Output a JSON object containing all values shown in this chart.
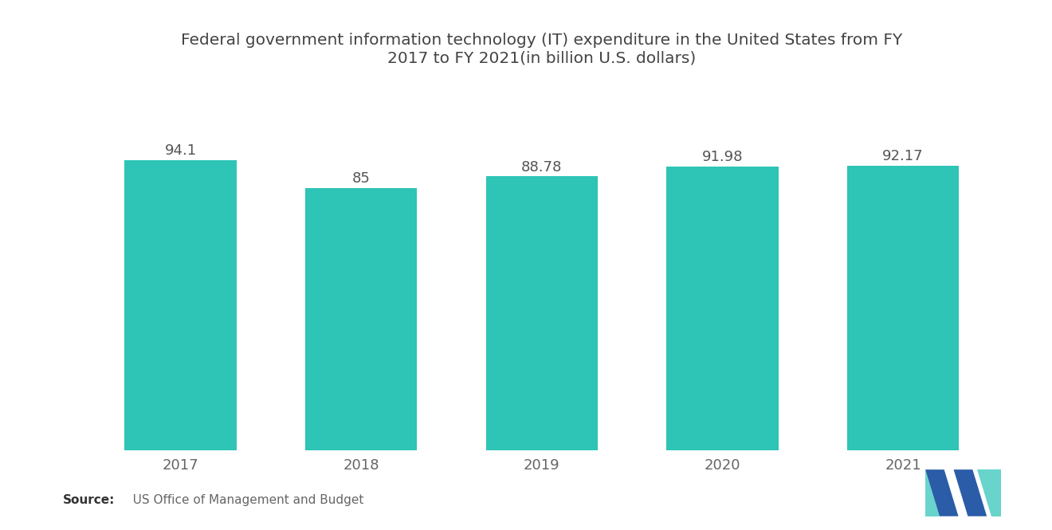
{
  "title": "Federal government information technology (IT) expenditure in the United States from FY\n2017 to FY 2021(in billion U.S. dollars)",
  "categories": [
    "2017",
    "2018",
    "2019",
    "2020",
    "2021"
  ],
  "values": [
    94.1,
    85,
    88.78,
    91.98,
    92.17
  ],
  "value_labels": [
    "94.1",
    "85",
    "88.78",
    "91.98",
    "92.17"
  ],
  "bar_color": "#2EC4B6",
  "background_color": "#ffffff",
  "title_fontsize": 14.5,
  "label_fontsize": 13,
  "tick_fontsize": 13,
  "ylim": [
    0,
    115
  ],
  "source_bold": "Source:",
  "source_text": "   US Office of Management and Budget",
  "logo_dark": "#2A5CA8",
  "logo_teal": "#4ECDC4"
}
